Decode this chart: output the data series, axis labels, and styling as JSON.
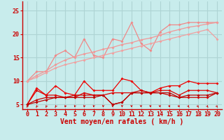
{
  "background_color": "#c8ecec",
  "grid_color": "#aed4d4",
  "xlabel": "Vent moyen/en rafales ( km/h )",
  "ylabel_ticks": [
    5,
    10,
    15,
    20,
    25
  ],
  "xlim": [
    -0.5,
    20.5
  ],
  "ylim": [
    4.0,
    27.0
  ],
  "xticks": [
    0,
    1,
    2,
    3,
    4,
    5,
    6,
    7,
    8,
    9,
    10,
    11,
    12,
    13,
    14,
    15,
    16,
    17,
    18,
    19,
    20
  ],
  "series": [
    {
      "x": [
        0,
        1,
        2,
        3,
        4,
        5,
        6,
        7,
        8,
        9,
        10,
        11,
        12,
        13,
        14,
        15,
        16,
        17,
        18,
        19,
        20
      ],
      "y": [
        10.0,
        12.0,
        12.0,
        15.5,
        16.5,
        15.0,
        19.0,
        15.5,
        15.0,
        19.0,
        18.5,
        22.5,
        18.0,
        16.5,
        20.5,
        22.0,
        22.0,
        22.5,
        22.5,
        22.5,
        22.5
      ],
      "color": "#f08888",
      "marker": "D",
      "markersize": 2.0,
      "linewidth": 0.9
    },
    {
      "x": [
        0,
        1,
        2,
        3,
        4,
        5,
        6,
        7,
        8,
        9,
        10,
        11,
        12,
        13,
        14,
        15,
        16,
        17,
        18,
        19,
        20
      ],
      "y": [
        10.0,
        11.2,
        12.2,
        13.5,
        14.5,
        15.2,
        15.8,
        16.2,
        16.8,
        17.2,
        17.8,
        18.2,
        18.8,
        19.2,
        19.8,
        20.5,
        21.0,
        21.5,
        21.8,
        22.2,
        22.5
      ],
      "color": "#f09898",
      "marker": "D",
      "markersize": 2.0,
      "linewidth": 0.9
    },
    {
      "x": [
        0,
        1,
        2,
        3,
        4,
        5,
        6,
        7,
        8,
        9,
        10,
        11,
        12,
        13,
        14,
        15,
        16,
        17,
        18,
        19,
        20
      ],
      "y": [
        10.0,
        10.8,
        11.8,
        12.8,
        13.5,
        14.0,
        14.5,
        15.0,
        15.5,
        16.0,
        16.5,
        17.0,
        17.5,
        18.0,
        18.5,
        19.0,
        19.5,
        20.0,
        20.5,
        21.0,
        19.0
      ],
      "color": "#f0a0a0",
      "marker": "D",
      "markersize": 2.0,
      "linewidth": 0.9
    },
    {
      "x": [
        0,
        1,
        2,
        3,
        4,
        5,
        6,
        7,
        8,
        9,
        10,
        11,
        12,
        13,
        14,
        15,
        16,
        17,
        18,
        19,
        20
      ],
      "y": [
        5.0,
        8.5,
        7.0,
        9.0,
        7.5,
        7.0,
        10.0,
        8.0,
        8.0,
        8.0,
        10.5,
        10.0,
        8.0,
        7.5,
        8.5,
        9.0,
        9.0,
        10.0,
        9.5,
        9.5,
        9.5
      ],
      "color": "#ee0000",
      "marker": "D",
      "markersize": 2.0,
      "linewidth": 0.9
    },
    {
      "x": [
        0,
        1,
        2,
        3,
        4,
        5,
        6,
        7,
        8,
        9,
        10,
        11,
        12,
        13,
        14,
        15,
        16,
        17,
        18,
        19,
        20
      ],
      "y": [
        5.0,
        8.0,
        7.0,
        7.0,
        6.5,
        6.5,
        7.5,
        7.0,
        7.0,
        7.5,
        7.5,
        7.5,
        7.5,
        7.5,
        8.0,
        8.0,
        7.0,
        8.0,
        8.0,
        8.0,
        7.5
      ],
      "color": "#dd0000",
      "marker": "D",
      "markersize": 2.0,
      "linewidth": 0.9
    },
    {
      "x": [
        0,
        1,
        2,
        3,
        4,
        5,
        6,
        7,
        8,
        9,
        10,
        11,
        12,
        13,
        14,
        15,
        16,
        17,
        18,
        19,
        20
      ],
      "y": [
        5.0,
        6.0,
        6.5,
        6.5,
        6.5,
        7.0,
        7.0,
        7.0,
        7.0,
        5.0,
        5.5,
        7.5,
        8.0,
        7.5,
        7.5,
        7.0,
        6.5,
        6.5,
        6.5,
        6.5,
        7.5
      ],
      "color": "#cc0000",
      "marker": "D",
      "markersize": 2.0,
      "linewidth": 0.9
    },
    {
      "x": [
        0,
        1,
        2,
        3,
        4,
        5,
        6,
        7,
        8,
        9,
        10,
        11,
        12,
        13,
        14,
        15,
        16,
        17,
        18,
        19,
        20
      ],
      "y": [
        5.0,
        5.5,
        6.0,
        6.5,
        6.5,
        6.5,
        6.5,
        6.5,
        7.0,
        5.0,
        5.5,
        7.5,
        7.5,
        7.5,
        7.5,
        7.5,
        6.5,
        7.0,
        7.0,
        7.0,
        7.5
      ],
      "color": "#bb0000",
      "marker": "D",
      "markersize": 2.0,
      "linewidth": 0.9
    }
  ],
  "tick_fontsize": 6,
  "label_fontsize": 7,
  "tick_color": "#cc0000",
  "label_color": "#cc0000",
  "axis_color": "#cc0000"
}
